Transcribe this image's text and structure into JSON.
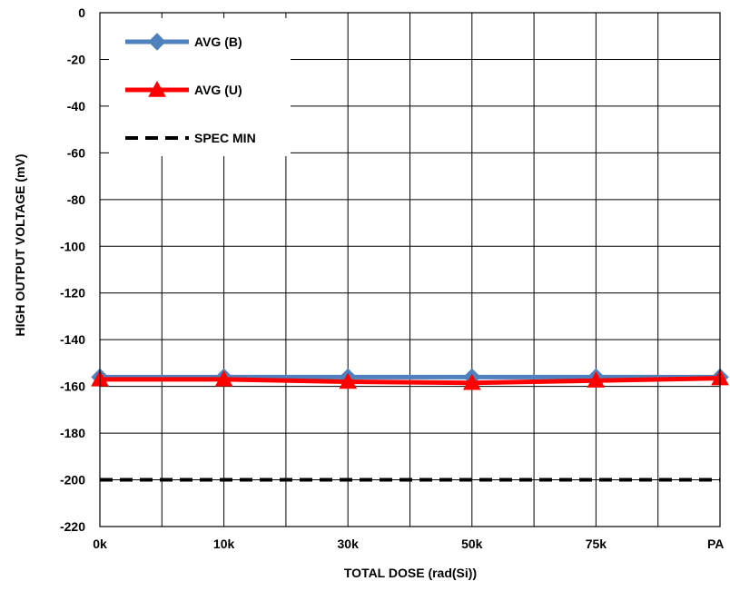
{
  "chart_data": {
    "type": "line",
    "title": "",
    "xlabel": "TOTAL DOSE (rad(Si))",
    "ylabel": "HIGH OUTPUT VOLTAGE (mV)",
    "categories": [
      "0k",
      "10k",
      "30k",
      "50k",
      "75k",
      "PA"
    ],
    "ylim": [
      -220,
      0
    ],
    "yticks": [
      0,
      -20,
      -40,
      -60,
      -80,
      -100,
      -120,
      -140,
      -160,
      -180,
      -200,
      -220
    ],
    "grid": true,
    "legend_position": "top-left",
    "series": [
      {
        "name": "AVG (B)",
        "color": "#4F81BD",
        "marker": "diamond",
        "values": [
          -156,
          -156,
          -156,
          -156,
          -156,
          -156
        ]
      },
      {
        "name": "AVG (U)",
        "color": "#FF0000",
        "marker": "triangle",
        "values": [
          -157,
          -157,
          -158,
          -158.5,
          -157.5,
          -156.5
        ]
      },
      {
        "name": "SPEC MIN",
        "color": "#000000",
        "marker": "none",
        "dashed": true,
        "values": [
          -200,
          -200,
          -200,
          -200,
          -200,
          -200
        ]
      }
    ]
  }
}
